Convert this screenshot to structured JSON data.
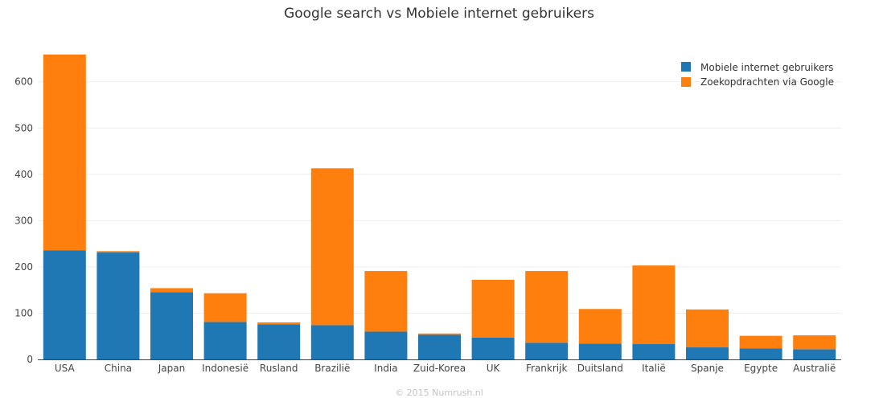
{
  "chart_data": {
    "type": "bar",
    "stacked": true,
    "title": "Google search vs Mobiele internet gebruikers",
    "xlabel": "",
    "ylabel": "",
    "ylim": [
      0,
      660
    ],
    "yticks": [
      0,
      100,
      200,
      300,
      400,
      500,
      600
    ],
    "grid": true,
    "legend_position": "top-right",
    "categories": [
      "USA",
      "China",
      "Japan",
      "Indonesië",
      "Rusland",
      "Brazilië",
      "India",
      "Zuid-Korea",
      "UK",
      "Frankrijk",
      "Duitsland",
      "Italië",
      "Spanje",
      "Egypte",
      "Australië"
    ],
    "series": [
      {
        "name": "Mobiele internet gebruikers",
        "color": "#1f77b4",
        "values": [
          236,
          231,
          145,
          81,
          76,
          74,
          60,
          53,
          47,
          36,
          34,
          33,
          26,
          24,
          22
        ]
      },
      {
        "name": "Zoekopdrachten via Google",
        "color": "#ff7f0e",
        "values": [
          423,
          3,
          9,
          62,
          4,
          339,
          131,
          3,
          125,
          155,
          75,
          170,
          82,
          27,
          30
        ]
      }
    ]
  },
  "footer": {
    "credit": "© 2015 Numrush.nl"
  }
}
